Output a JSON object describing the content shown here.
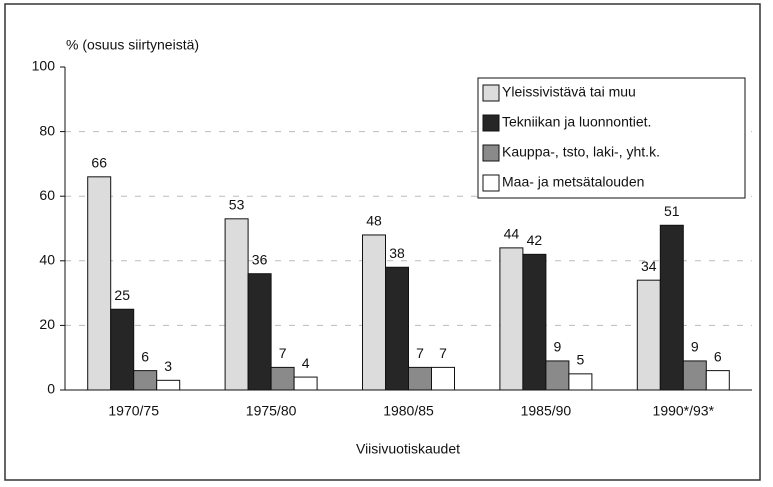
{
  "chart_data": {
    "type": "bar",
    "y_label": "% (osuus siirtyneistä)",
    "x_label": "Viisivuotiskaudet",
    "categories": [
      "1970/75",
      "1975/80",
      "1980/85",
      "1985/90",
      "1990*/93*"
    ],
    "series": [
      {
        "name": "Yleissivistävä tai muu",
        "color": "#dcdcdc",
        "values": [
          66,
          53,
          48,
          44,
          34
        ]
      },
      {
        "name": "Tekniikan ja luonnontiet.",
        "color": "#262626",
        "values": [
          25,
          36,
          38,
          42,
          51
        ]
      },
      {
        "name": "Kauppa-, tsto, laki-, yht.k.",
        "color": "#8a8a8a",
        "values": [
          6,
          7,
          7,
          9,
          9
        ]
      },
      {
        "name": "Maa- ja metsätalouden",
        "color": "#ffffff",
        "values": [
          3,
          4,
          7,
          5,
          6
        ]
      }
    ],
    "ylim": [
      0,
      100
    ],
    "yticks": [
      0,
      20,
      40,
      60,
      80,
      100
    ],
    "grid": true,
    "legend": "upper right"
  }
}
